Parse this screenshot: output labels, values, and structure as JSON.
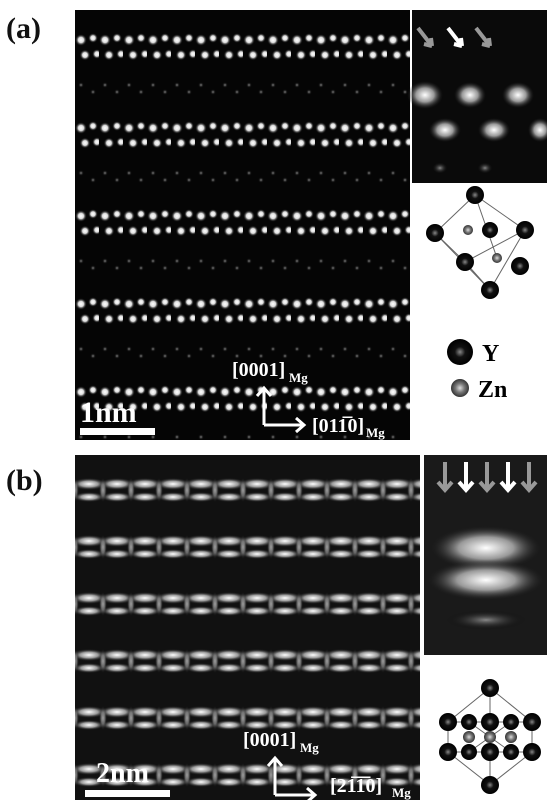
{
  "panel_a": {
    "label": "(a)",
    "scale_bar": "1nm",
    "direction_vertical": "[0001]",
    "direction_vertical_sub": "Mg",
    "direction_horizontal": "[011̅0]",
    "direction_horizontal_sub": "Mg",
    "legend": [
      {
        "label": "Y"
      },
      {
        "label": "Zn"
      }
    ]
  },
  "panel_b": {
    "label": "(b)",
    "scale_bar": "2nm",
    "direction_vertical": "[0001]",
    "direction_vertical_sub": "Mg",
    "direction_horizontal": "[21̅1̅0]",
    "direction_horizontal_sub": "Mg"
  }
}
